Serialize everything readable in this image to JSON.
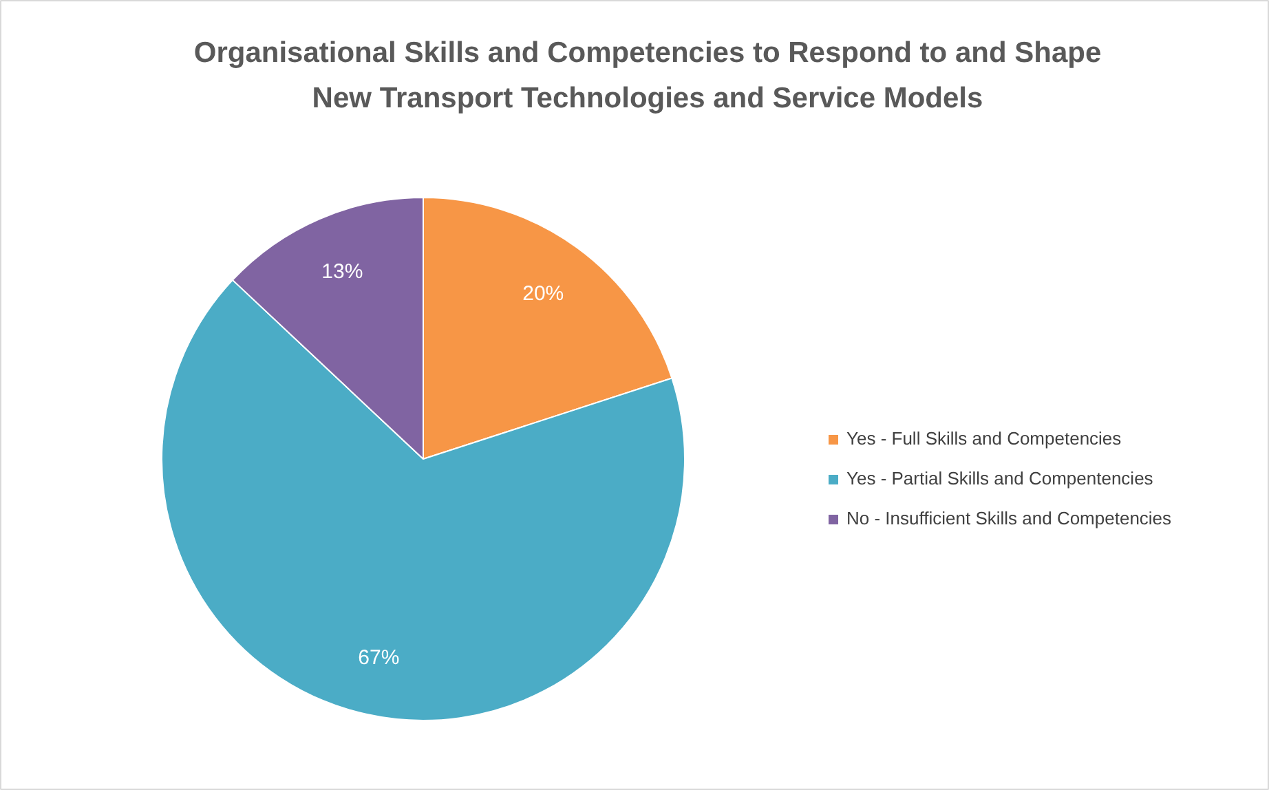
{
  "chart_data": {
    "type": "pie",
    "title": "Organisational Skills and Competencies to Respond to and Shape New Transport Technologies and Service Models",
    "categories": [
      "Yes - Full Skills and Competencies",
      "Yes - Partial Skills and Compentencies",
      "No - Insufficient Skills and Competencies"
    ],
    "values": [
      20,
      67,
      13
    ],
    "colors": [
      "#f79646",
      "#4bacc6",
      "#8064a2"
    ],
    "value_labels": [
      "20%",
      "67%",
      "13%"
    ],
    "legend": "right"
  }
}
